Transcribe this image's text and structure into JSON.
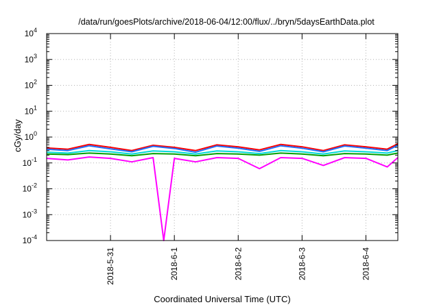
{
  "chart_data": {
    "type": "line",
    "title": "/data/run/goesPlots/archive/2018-06-04/12:00/flux/../bryn/5daysEarthData.plot",
    "xlabel": "Coordinated Universal Time (UTC)",
    "ylabel": "cGy/day",
    "yscale": "log",
    "ylim": [
      0.0001,
      10000
    ],
    "xlim": [
      "2018-05-30 00:00",
      "2018-06-04 12:00"
    ],
    "grid": true,
    "y_ticks": [
      {
        "value": 0.0001,
        "base": "10",
        "exp": "-4"
      },
      {
        "value": 0.001,
        "base": "10",
        "exp": "-3"
      },
      {
        "value": 0.01,
        "base": "10",
        "exp": "-2"
      },
      {
        "value": 0.1,
        "base": "10",
        "exp": "-1"
      },
      {
        "value": 1,
        "base": "10",
        "exp": "0"
      },
      {
        "value": 10,
        "base": "10",
        "exp": "1"
      },
      {
        "value": 100,
        "base": "10",
        "exp": "2"
      },
      {
        "value": 1000,
        "base": "10",
        "exp": "3"
      },
      {
        "value": 10000,
        "base": "10",
        "exp": "4"
      }
    ],
    "x_ticks": [
      {
        "value": "2018-05-31 00:00",
        "label": "2018-5-31"
      },
      {
        "value": "2018-06-01 00:00",
        "label": "2018-6-1"
      },
      {
        "value": "2018-06-02 00:00",
        "label": "2018-6-2"
      },
      {
        "value": "2018-06-03 00:00",
        "label": "2018-6-3"
      },
      {
        "value": "2018-06-04 00:00",
        "label": "2018-6-4"
      }
    ],
    "series": [
      {
        "color": "#ff0000",
        "points": [
          [
            "2018-05-30 00:00",
            0.38
          ],
          [
            "2018-05-30 08:00",
            0.34
          ],
          [
            "2018-05-30 16:00",
            0.52
          ],
          [
            "2018-05-31 00:00",
            0.4
          ],
          [
            "2018-05-31 08:00",
            0.3
          ],
          [
            "2018-05-31 16:00",
            0.48
          ],
          [
            "2018-06-01 00:00",
            0.4
          ],
          [
            "2018-06-01 08:00",
            0.3
          ],
          [
            "2018-06-01 16:00",
            0.5
          ],
          [
            "2018-06-02 00:00",
            0.42
          ],
          [
            "2018-06-02 08:00",
            0.32
          ],
          [
            "2018-06-02 16:00",
            0.52
          ],
          [
            "2018-06-03 00:00",
            0.42
          ],
          [
            "2018-06-03 08:00",
            0.3
          ],
          [
            "2018-06-03 16:00",
            0.5
          ],
          [
            "2018-06-04 00:00",
            0.42
          ],
          [
            "2018-06-04 08:00",
            0.34
          ],
          [
            "2018-06-04 12:00",
            0.55
          ]
        ]
      },
      {
        "color": "#1f6fff",
        "points": [
          [
            "2018-05-30 00:00",
            0.34
          ],
          [
            "2018-05-30 08:00",
            0.3
          ],
          [
            "2018-05-30 16:00",
            0.46
          ],
          [
            "2018-05-31 00:00",
            0.35
          ],
          [
            "2018-05-31 08:00",
            0.27
          ],
          [
            "2018-05-31 16:00",
            0.44
          ],
          [
            "2018-06-01 00:00",
            0.36
          ],
          [
            "2018-06-01 08:00",
            0.26
          ],
          [
            "2018-06-01 16:00",
            0.45
          ],
          [
            "2018-06-02 00:00",
            0.37
          ],
          [
            "2018-06-02 08:00",
            0.28
          ],
          [
            "2018-06-02 16:00",
            0.46
          ],
          [
            "2018-06-03 00:00",
            0.37
          ],
          [
            "2018-06-03 08:00",
            0.27
          ],
          [
            "2018-06-03 16:00",
            0.45
          ],
          [
            "2018-06-04 00:00",
            0.37
          ],
          [
            "2018-06-04 08:00",
            0.3
          ],
          [
            "2018-06-04 12:00",
            0.48
          ]
        ]
      },
      {
        "color": "#00d8d8",
        "points": [
          [
            "2018-05-30 00:00",
            0.26
          ],
          [
            "2018-05-30 08:00",
            0.24
          ],
          [
            "2018-05-30 16:00",
            0.3
          ],
          [
            "2018-05-31 00:00",
            0.27
          ],
          [
            "2018-05-31 08:00",
            0.22
          ],
          [
            "2018-05-31 16:00",
            0.29
          ],
          [
            "2018-06-01 00:00",
            0.27
          ],
          [
            "2018-06-01 08:00",
            0.22
          ],
          [
            "2018-06-01 16:00",
            0.29
          ],
          [
            "2018-06-02 00:00",
            0.27
          ],
          [
            "2018-06-02 08:00",
            0.23
          ],
          [
            "2018-06-02 16:00",
            0.3
          ],
          [
            "2018-06-03 00:00",
            0.27
          ],
          [
            "2018-06-03 08:00",
            0.22
          ],
          [
            "2018-06-03 16:00",
            0.29
          ],
          [
            "2018-06-04 00:00",
            0.27
          ],
          [
            "2018-06-04 08:00",
            0.24
          ],
          [
            "2018-06-04 12:00",
            0.3
          ]
        ]
      },
      {
        "color": "#00a000",
        "points": [
          [
            "2018-05-30 00:00",
            0.22
          ],
          [
            "2018-05-30 08:00",
            0.21
          ],
          [
            "2018-05-30 16:00",
            0.24
          ],
          [
            "2018-05-31 00:00",
            0.22
          ],
          [
            "2018-05-31 08:00",
            0.19
          ],
          [
            "2018-05-31 16:00",
            0.23
          ],
          [
            "2018-06-01 00:00",
            0.22
          ],
          [
            "2018-06-01 08:00",
            0.19
          ],
          [
            "2018-06-01 16:00",
            0.23
          ],
          [
            "2018-06-02 00:00",
            0.22
          ],
          [
            "2018-06-02 08:00",
            0.2
          ],
          [
            "2018-06-02 16:00",
            0.24
          ],
          [
            "2018-06-03 00:00",
            0.22
          ],
          [
            "2018-06-03 08:00",
            0.19
          ],
          [
            "2018-06-03 16:00",
            0.23
          ],
          [
            "2018-06-04 00:00",
            0.22
          ],
          [
            "2018-06-04 08:00",
            0.2
          ],
          [
            "2018-06-04 12:00",
            0.24
          ]
        ]
      },
      {
        "color": "#ff00ff",
        "points": [
          [
            "2018-05-30 00:00",
            0.15
          ],
          [
            "2018-05-30 08:00",
            0.13
          ],
          [
            "2018-05-30 16:00",
            0.17
          ],
          [
            "2018-05-31 00:00",
            0.15
          ],
          [
            "2018-05-31 08:00",
            0.11
          ],
          [
            "2018-05-31 16:00",
            0.16
          ],
          [
            "2018-05-31 20:00",
            0.0001
          ],
          [
            "2018-06-01 00:00",
            0.15
          ],
          [
            "2018-06-01 08:00",
            0.11
          ],
          [
            "2018-06-01 16:00",
            0.16
          ],
          [
            "2018-06-02 00:00",
            0.15
          ],
          [
            "2018-06-02 08:00",
            0.06
          ],
          [
            "2018-06-02 16:00",
            0.16
          ],
          [
            "2018-06-03 00:00",
            0.15
          ],
          [
            "2018-06-03 08:00",
            0.08
          ],
          [
            "2018-06-03 16:00",
            0.16
          ],
          [
            "2018-06-04 00:00",
            0.15
          ],
          [
            "2018-06-04 08:00",
            0.07
          ],
          [
            "2018-06-04 12:00",
            0.16
          ]
        ]
      }
    ]
  }
}
